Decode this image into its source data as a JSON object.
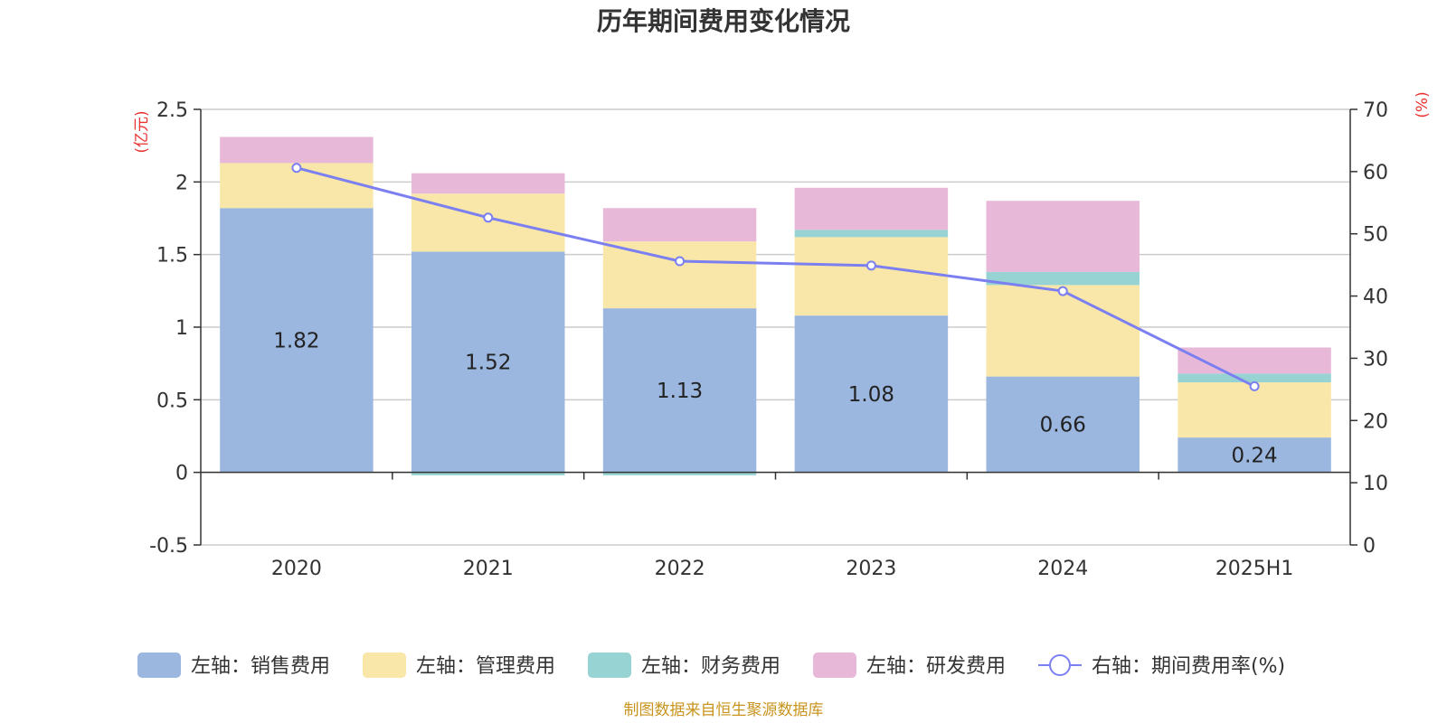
{
  "title": "历年期间费用变化情况",
  "left_unit": "(亿元)",
  "right_unit": "(%)",
  "source": "制图数据来自恒生聚源数据库",
  "colors": {
    "sales": "#9bb7e0",
    "admin": "#f8e7a9",
    "finance": "#96d3d2",
    "rnd": "#e8b8d8",
    "rate": "#7b7ff0"
  },
  "legend": [
    {
      "label": "左轴：销售费用",
      "key": "sales",
      "kind": "box"
    },
    {
      "label": "左轴：管理费用",
      "key": "admin",
      "kind": "box"
    },
    {
      "label": "左轴：财务费用",
      "key": "finance",
      "kind": "box"
    },
    {
      "label": "左轴：研发费用",
      "key": "rnd",
      "kind": "box"
    },
    {
      "label": "右轴：期间费用率(%)",
      "key": "rate",
      "kind": "line"
    }
  ],
  "chart_data": {
    "type": "bar",
    "stacked": true,
    "categories": [
      "2020",
      "2021",
      "2022",
      "2023",
      "2024",
      "2025H1"
    ],
    "series": [
      {
        "name": "左轴：销售费用",
        "key": "sales",
        "axis": "left",
        "values": [
          1.82,
          1.52,
          1.13,
          1.08,
          0.66,
          0.24
        ],
        "data_labels": [
          "1.82",
          "1.52",
          "1.13",
          "1.08",
          "0.66",
          "0.24"
        ]
      },
      {
        "name": "左轴：管理费用",
        "key": "admin",
        "axis": "left",
        "values": [
          0.31,
          0.4,
          0.46,
          0.54,
          0.63,
          0.38
        ]
      },
      {
        "name": "左轴：财务费用",
        "key": "finance",
        "axis": "left",
        "values": [
          0.0,
          -0.02,
          -0.02,
          0.05,
          0.09,
          0.06
        ]
      },
      {
        "name": "左轴：研发费用",
        "key": "rnd",
        "axis": "left",
        "values": [
          0.18,
          0.14,
          0.23,
          0.29,
          0.49,
          0.18
        ]
      },
      {
        "name": "右轴：期间费用率(%)",
        "key": "rate",
        "axis": "right",
        "type": "line",
        "values": [
          60.6,
          52.6,
          45.6,
          44.9,
          40.8,
          25.5
        ]
      }
    ],
    "left_axis": {
      "ylim": [
        -0.5,
        2.5
      ],
      "ticks": [
        "2.5",
        "2",
        "1.5",
        "1",
        "0.5",
        "0",
        "-0.5"
      ],
      "tick_values": [
        2.5,
        2,
        1.5,
        1,
        0.5,
        0,
        -0.5
      ]
    },
    "right_axis": {
      "ylim": [
        0,
        70
      ],
      "ticks": [
        "70",
        "60",
        "50",
        "40",
        "30",
        "20",
        "10",
        "0"
      ],
      "tick_values": [
        70,
        60,
        50,
        40,
        30,
        20,
        10,
        0
      ]
    },
    "grid": true,
    "legend_position": "bottom"
  }
}
